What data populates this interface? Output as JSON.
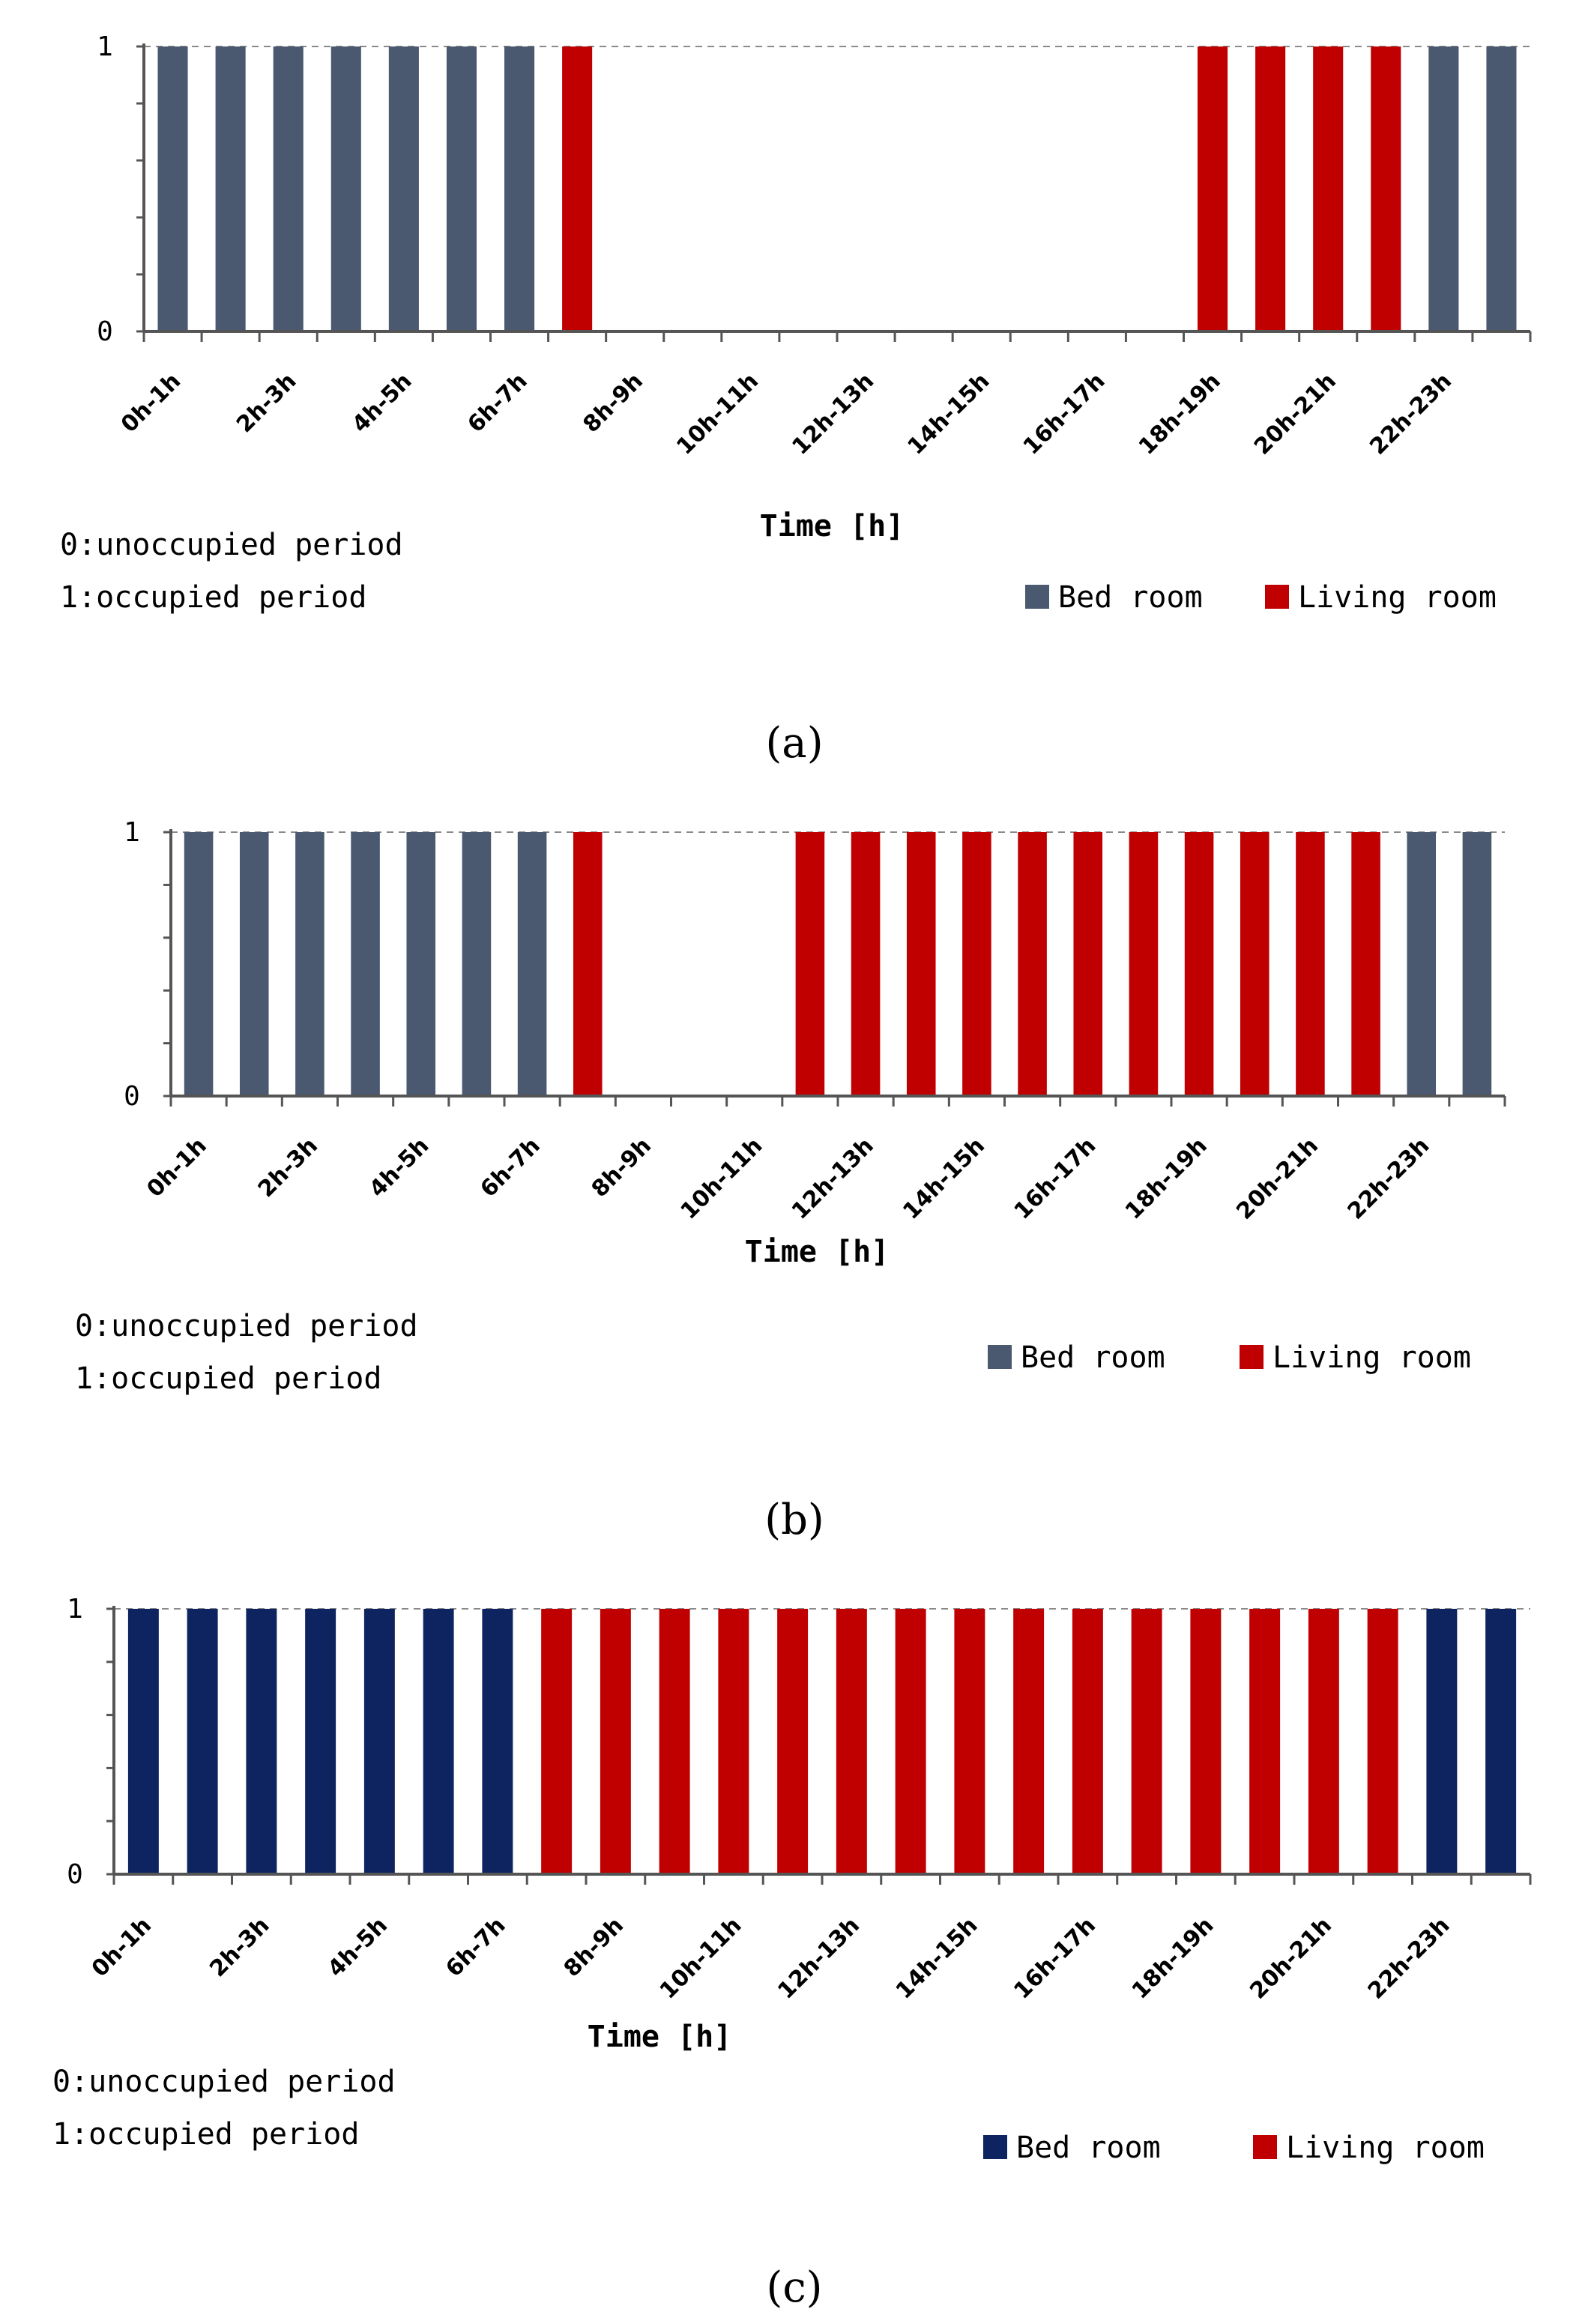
{
  "chart_data": [
    {
      "type": "bar",
      "panel_label": "(a)",
      "categories": [
        "0h-1h",
        "1h-2h",
        "2h-3h",
        "3h-4h",
        "4h-5h",
        "5h-6h",
        "6h-7h",
        "7h-8h",
        "8h-9h",
        "9h-10h",
        "10h-11h",
        "11h-12h",
        "12h-13h",
        "13h-14h",
        "14h-15h",
        "15h-16h",
        "16h-17h",
        "17h-18h",
        "18h-19h",
        "19h-20h",
        "20h-21h",
        "21h-22h",
        "22h-23h",
        "23h-24h"
      ],
      "tick_labels": [
        "0h-1h",
        "2h-3h",
        "4h-5h",
        "6h-7h",
        "8h-9h",
        "10h-11h",
        "12h-13h",
        "14h-15h",
        "16h-17h",
        "18h-19h",
        "20h-21h",
        "22h-23h"
      ],
      "series": [
        {
          "name": "Bed room",
          "values": [
            1,
            1,
            1,
            1,
            1,
            1,
            1,
            0,
            0,
            0,
            0,
            0,
            0,
            0,
            0,
            0,
            0,
            0,
            0,
            0,
            0,
            0,
            1,
            1
          ]
        },
        {
          "name": "Living room",
          "values": [
            0,
            0,
            0,
            0,
            0,
            0,
            0,
            1,
            0,
            0,
            0,
            0,
            0,
            0,
            0,
            0,
            0,
            0,
            1,
            1,
            1,
            1,
            0,
            0
          ]
        }
      ],
      "xlabel": "Time [h]",
      "ylabel": "",
      "ylim": [
        0,
        1
      ],
      "yticks": [
        "0",
        "1"
      ],
      "notes": [
        "0:unoccupied period",
        "1:occupied period"
      ],
      "legend": [
        "Bed room",
        "Living room"
      ],
      "colors": [
        "#4a5870",
        "#c00000"
      ]
    },
    {
      "type": "bar",
      "panel_label": "(b)",
      "categories": [
        "0h-1h",
        "1h-2h",
        "2h-3h",
        "3h-4h",
        "4h-5h",
        "5h-6h",
        "6h-7h",
        "7h-8h",
        "8h-9h",
        "9h-10h",
        "10h-11h",
        "11h-12h",
        "12h-13h",
        "13h-14h",
        "14h-15h",
        "15h-16h",
        "16h-17h",
        "17h-18h",
        "18h-19h",
        "19h-20h",
        "20h-21h",
        "21h-22h",
        "22h-23h",
        "23h-24h"
      ],
      "tick_labels": [
        "0h-1h",
        "2h-3h",
        "4h-5h",
        "6h-7h",
        "8h-9h",
        "10h-11h",
        "12h-13h",
        "14h-15h",
        "16h-17h",
        "18h-19h",
        "20h-21h",
        "22h-23h"
      ],
      "series": [
        {
          "name": "Bed room",
          "values": [
            1,
            1,
            1,
            1,
            1,
            1,
            1,
            0,
            0,
            0,
            0,
            0,
            0,
            0,
            0,
            0,
            0,
            0,
            0,
            0,
            0,
            0,
            1,
            1
          ]
        },
        {
          "name": "Living room",
          "values": [
            0,
            0,
            0,
            0,
            0,
            0,
            0,
            1,
            0,
            0,
            0,
            1,
            1,
            1,
            1,
            1,
            1,
            1,
            1,
            1,
            1,
            1,
            0,
            0
          ]
        }
      ],
      "xlabel": "Time [h]",
      "ylabel": "",
      "ylim": [
        0,
        1
      ],
      "yticks": [
        "0",
        "1"
      ],
      "notes": [
        "0:unoccupied period",
        "1:occupied period"
      ],
      "legend": [
        "Bed room",
        "Living room"
      ],
      "colors": [
        "#4a5870",
        "#c00000"
      ]
    },
    {
      "type": "bar",
      "panel_label": "(c)",
      "categories": [
        "0h-1h",
        "1h-2h",
        "2h-3h",
        "3h-4h",
        "4h-5h",
        "5h-6h",
        "6h-7h",
        "7h-8h",
        "8h-9h",
        "9h-10h",
        "10h-11h",
        "11h-12h",
        "12h-13h",
        "13h-14h",
        "14h-15h",
        "15h-16h",
        "16h-17h",
        "17h-18h",
        "18h-19h",
        "19h-20h",
        "20h-21h",
        "21h-22h",
        "22h-23h",
        "23h-24h"
      ],
      "tick_labels": [
        "0h-1h",
        "2h-3h",
        "4h-5h",
        "6h-7h",
        "8h-9h",
        "10h-11h",
        "12h-13h",
        "14h-15h",
        "16h-17h",
        "18h-19h",
        "20h-21h",
        "22h-23h"
      ],
      "series": [
        {
          "name": "Bed room",
          "values": [
            1,
            1,
            1,
            1,
            1,
            1,
            1,
            0,
            0,
            0,
            0,
            0,
            0,
            0,
            0,
            0,
            0,
            0,
            0,
            0,
            0,
            0,
            1,
            1
          ]
        },
        {
          "name": "Living room",
          "values": [
            0,
            0,
            0,
            0,
            0,
            0,
            0,
            1,
            1,
            1,
            1,
            1,
            1,
            1,
            1,
            1,
            1,
            1,
            1,
            1,
            1,
            1,
            0,
            0
          ]
        }
      ],
      "xlabel": "Time [h]",
      "ylabel": "",
      "ylim": [
        0,
        1
      ],
      "yticks": [
        "0",
        "1"
      ],
      "notes": [
        "0:unoccupied period",
        "1:occupied period"
      ],
      "legend": [
        "Bed room",
        "Living room"
      ],
      "colors": [
        "#0d2460",
        "#c00000"
      ]
    }
  ]
}
